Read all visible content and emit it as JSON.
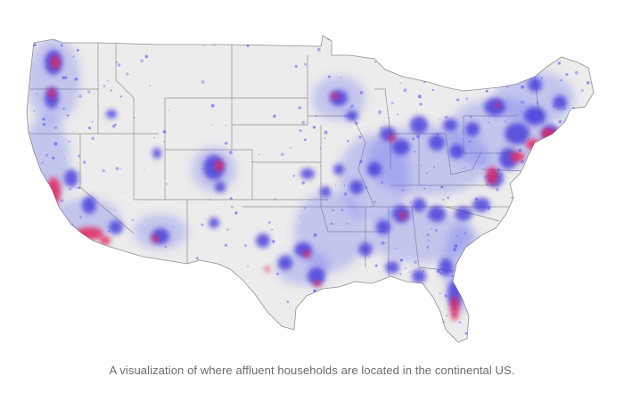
{
  "caption": "A visualization of where affluent households are located in the continental US.",
  "colors": {
    "land": "#ececec",
    "border": "#8f8f8f",
    "density_low": "#5a5cf0",
    "density_mid": "#3a2fd8",
    "density_high": "#e0245e"
  },
  "legend": null
}
